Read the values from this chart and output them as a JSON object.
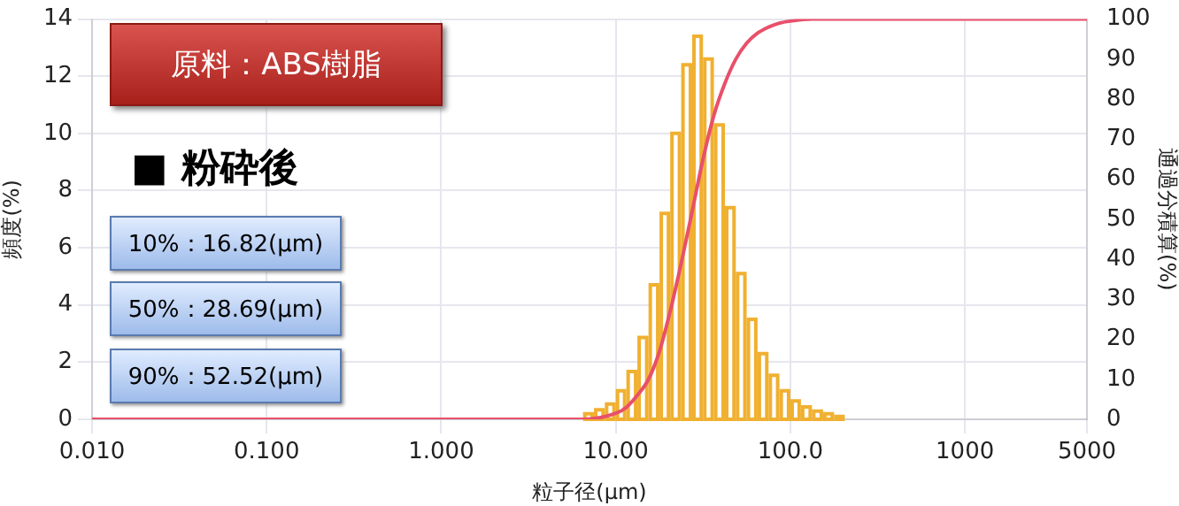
{
  "chart_data": {
    "type": "histogram",
    "xlabel": "粒子径(μm)",
    "ylabel": "頻度(%)",
    "y2label": "通過分積算(%)",
    "log": "x",
    "grid": true,
    "legend": false,
    "xlim": [
      0.01,
      5000
    ],
    "xticks": [
      {
        "value": 0.01,
        "label": "0.010"
      },
      {
        "value": 0.1,
        "label": "0.100"
      },
      {
        "value": 1,
        "label": "1.000"
      },
      {
        "value": 10,
        "label": "10.00"
      },
      {
        "value": 100,
        "label": "100.0"
      },
      1000,
      5000
    ],
    "ylim": [
      0,
      14
    ],
    "yticks": [
      0,
      2,
      4,
      6,
      8,
      10,
      12,
      14
    ],
    "y2lim": [
      0,
      100
    ],
    "y2ticks": [
      0,
      10,
      20,
      30,
      40,
      50,
      60,
      70,
      80,
      90,
      100
    ],
    "bins": [
      6.49,
      7.5,
      8.66,
      10,
      11.5,
      13.3,
      15.4,
      17.8,
      20.5,
      23.7,
      27.4,
      31.6,
      36.5,
      42.2,
      48.7,
      56.2,
      64.9,
      75,
      86.6,
      100,
      115,
      133,
      154,
      178,
      205
    ],
    "series": [
      {
        "color": "#f0b030",
        "values": [
          0.19,
          0.33,
          0.53,
          1.0,
          1.67,
          2.86,
          4.7,
          7.2,
          10.0,
          12.4,
          13.4,
          12.6,
          10.3,
          7.4,
          5.1,
          3.5,
          2.3,
          1.54,
          1.0,
          0.64,
          0.43,
          0.29,
          0.19,
          0.1
        ]
      },
      {
        "type": "line",
        "axis": "y2",
        "color": "#e8506a",
        "x": [
          0.01,
          6.49,
          10,
          11.5,
          13.3,
          15.4,
          17.8,
          20.5,
          23.7,
          27.4,
          31.6,
          36.5,
          42.2,
          48.7,
          56.2,
          64.9,
          75,
          86.6,
          100,
          133,
          205,
          5000
        ],
        "values": [
          0,
          0,
          1.5,
          3,
          6,
          10,
          17,
          27,
          39,
          52,
          65,
          76,
          84,
          90,
          94,
          96.5,
          98,
          99,
          99.5,
          100,
          100,
          100
        ]
      }
    ],
    "annotations": [
      "原料：ABS樹脂",
      "■ 粉砕後",
      "10%：16.82(μm)",
      "50%：28.69(μm)",
      "90%：52.52(μm)"
    ]
  }
}
